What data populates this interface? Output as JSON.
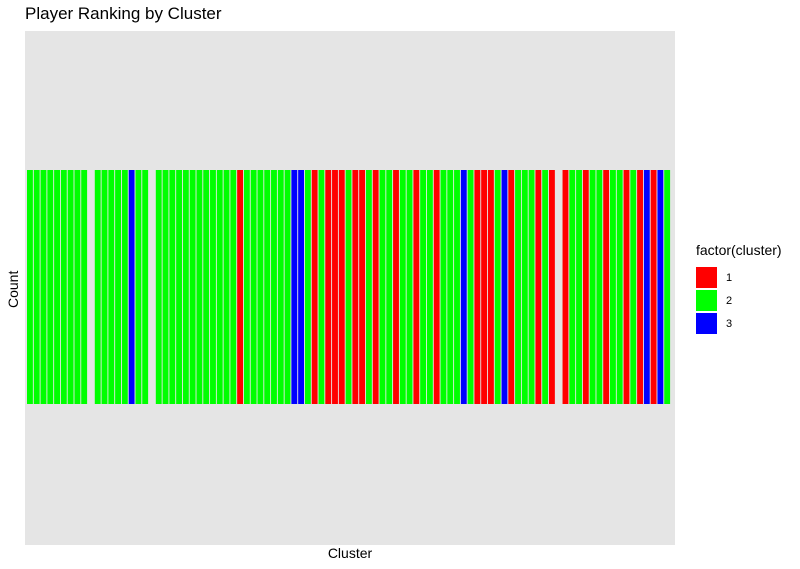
{
  "chart_data": {
    "type": "bar",
    "title": "Player Ranking by Cluster",
    "xlabel": "Cluster",
    "ylabel": "Count",
    "legend_title": "factor(cluster)",
    "legend_position": "right",
    "grid": false,
    "panel_background": "#e5e5e5",
    "ylim": [
      0,
      1
    ],
    "bar_value": 1,
    "colors": {
      "1": "#ff0000",
      "2": "#00ff00",
      "3": "#0000ff"
    },
    "legend": [
      {
        "label": "1",
        "color": "#ff0000"
      },
      {
        "label": "2",
        "color": "#00ff00"
      },
      {
        "label": "3",
        "color": "#0000ff"
      }
    ],
    "clusters": [
      "2",
      "2",
      "2",
      "2",
      "2",
      "2",
      "2",
      "2",
      "2",
      null,
      "2",
      "2",
      "2",
      "2",
      "2",
      "3",
      "2",
      "2",
      null,
      "2",
      "2",
      "2",
      "2",
      "2",
      "2",
      "2",
      "2",
      "2",
      "2",
      "2",
      "2",
      "1",
      "2",
      "2",
      "2",
      "2",
      "2",
      "2",
      "2",
      "3",
      "3",
      "2",
      "1",
      "2",
      "1",
      "1",
      "1",
      "2",
      "1",
      "1",
      "2",
      "1",
      "2",
      "2",
      "1",
      "2",
      "2",
      "1",
      "2",
      "2",
      "1",
      "2",
      "2",
      "2",
      "3",
      "2",
      "1",
      "1",
      "1",
      "2",
      "3",
      "1",
      "2",
      "2",
      "2",
      "1",
      "2",
      "1",
      null,
      "1",
      "2",
      "2",
      "1",
      "2",
      "2",
      "1",
      "2",
      "2",
      "1",
      "2",
      "1",
      "3",
      "1",
      "3",
      "2"
    ]
  }
}
